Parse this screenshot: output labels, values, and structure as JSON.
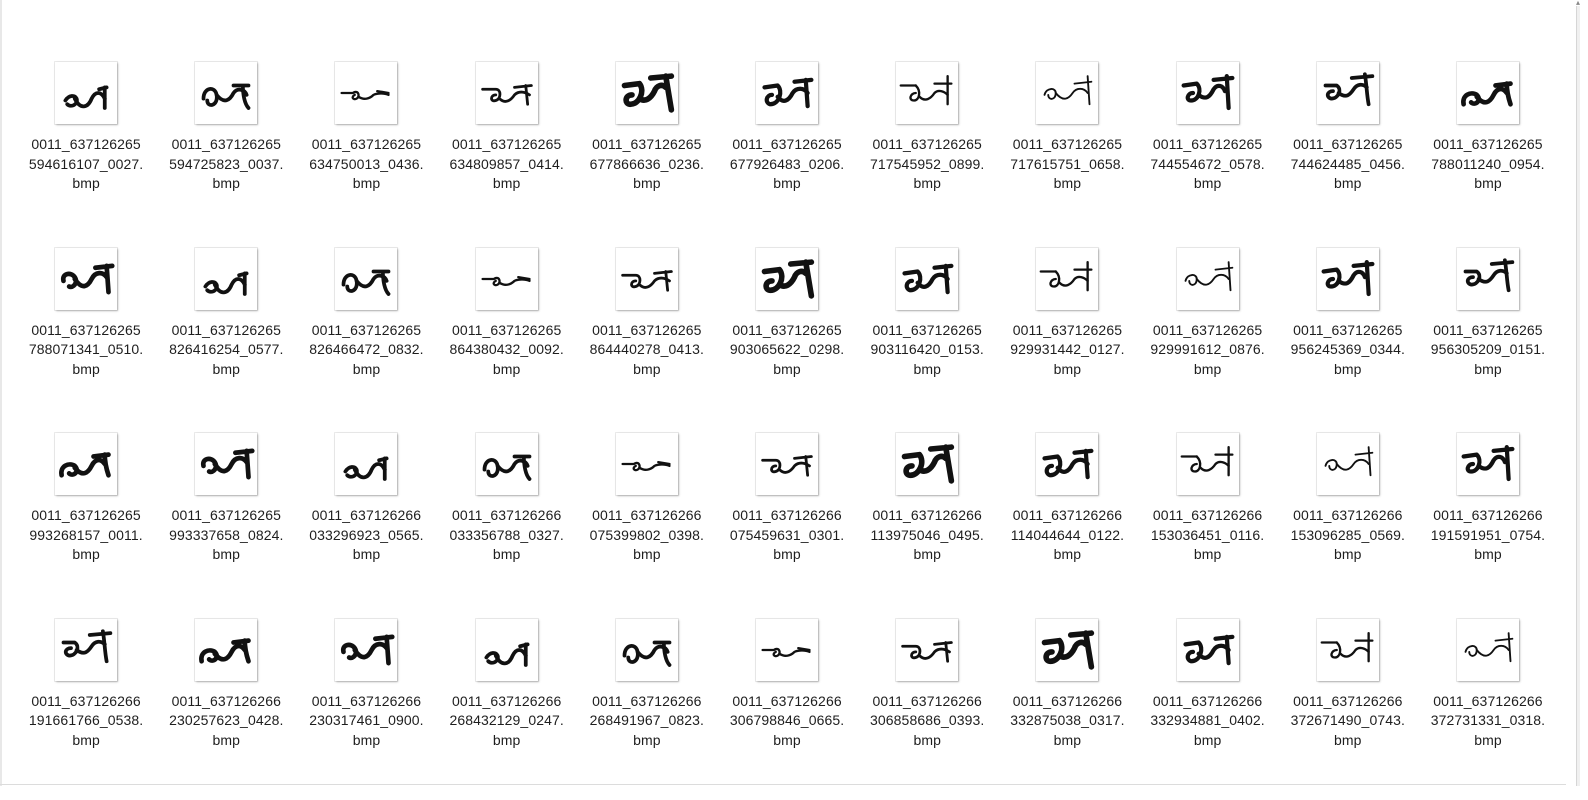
{
  "files": [
    {
      "name": [
        "0011_637126265",
        "594616107_0027.",
        "bmp"
      ],
      "glyph": 0
    },
    {
      "name": [
        "0011_637126265",
        "594725823_0037.",
        "bmp"
      ],
      "glyph": 1
    },
    {
      "name": [
        "0011_637126265",
        "634750013_0436.",
        "bmp"
      ],
      "glyph": 2
    },
    {
      "name": [
        "0011_637126265",
        "634809857_0414.",
        "bmp"
      ],
      "glyph": 3
    },
    {
      "name": [
        "0011_637126265",
        "677866636_0236.",
        "bmp"
      ],
      "glyph": 4
    },
    {
      "name": [
        "0011_637126265",
        "677926483_0206.",
        "bmp"
      ],
      "glyph": 5
    },
    {
      "name": [
        "0011_637126265",
        "717545952_0899.",
        "bmp"
      ],
      "glyph": 6
    },
    {
      "name": [
        "0011_637126265",
        "717615751_0658.",
        "bmp"
      ],
      "glyph": 7
    },
    {
      "name": [
        "0011_637126265",
        "744554672_0578.",
        "bmp"
      ],
      "glyph": 8
    },
    {
      "name": [
        "0011_637126265",
        "744624485_0456.",
        "bmp"
      ],
      "glyph": 9
    },
    {
      "name": [
        "0011_637126265",
        "788011240_0954.",
        "bmp"
      ],
      "glyph": 10
    },
    {
      "name": [
        "0011_637126265",
        "788071341_0510.",
        "bmp"
      ],
      "glyph": 11
    },
    {
      "name": [
        "0011_637126265",
        "826416254_0577.",
        "bmp"
      ],
      "glyph": 0
    },
    {
      "name": [
        "0011_637126265",
        "826466472_0832.",
        "bmp"
      ],
      "glyph": 1
    },
    {
      "name": [
        "0011_637126265",
        "864380432_0092.",
        "bmp"
      ],
      "glyph": 2
    },
    {
      "name": [
        "0011_637126265",
        "864440278_0413.",
        "bmp"
      ],
      "glyph": 3
    },
    {
      "name": [
        "0011_637126265",
        "903065622_0298.",
        "bmp"
      ],
      "glyph": 4
    },
    {
      "name": [
        "0011_637126265",
        "903116420_0153.",
        "bmp"
      ],
      "glyph": 5
    },
    {
      "name": [
        "0011_637126265",
        "929931442_0127.",
        "bmp"
      ],
      "glyph": 6
    },
    {
      "name": [
        "0011_637126265",
        "929991612_0876.",
        "bmp"
      ],
      "glyph": 7
    },
    {
      "name": [
        "0011_637126265",
        "956245369_0344.",
        "bmp"
      ],
      "glyph": 8
    },
    {
      "name": [
        "0011_637126265",
        "956305209_0151.",
        "bmp"
      ],
      "glyph": 9
    },
    {
      "name": [
        "0011_637126265",
        "993268157_0011.",
        "bmp"
      ],
      "glyph": 10
    },
    {
      "name": [
        "0011_637126265",
        "993337658_0824.",
        "bmp"
      ],
      "glyph": 11
    },
    {
      "name": [
        "0011_637126266",
        "033296923_0565.",
        "bmp"
      ],
      "glyph": 0
    },
    {
      "name": [
        "0011_637126266",
        "033356788_0327.",
        "bmp"
      ],
      "glyph": 1
    },
    {
      "name": [
        "0011_637126266",
        "075399802_0398.",
        "bmp"
      ],
      "glyph": 2
    },
    {
      "name": [
        "0011_637126266",
        "075459631_0301.",
        "bmp"
      ],
      "glyph": 3
    },
    {
      "name": [
        "0011_637126266",
        "113975046_0495.",
        "bmp"
      ],
      "glyph": 4
    },
    {
      "name": [
        "0011_637126266",
        "114044644_0122.",
        "bmp"
      ],
      "glyph": 5
    },
    {
      "name": [
        "0011_637126266",
        "153036451_0116.",
        "bmp"
      ],
      "glyph": 6
    },
    {
      "name": [
        "0011_637126266",
        "153096285_0569.",
        "bmp"
      ],
      "glyph": 7
    },
    {
      "name": [
        "0011_637126266",
        "191591951_0754.",
        "bmp"
      ],
      "glyph": 8
    },
    {
      "name": [
        "0011_637126266",
        "191661766_0538.",
        "bmp"
      ],
      "glyph": 9
    },
    {
      "name": [
        "0011_637126266",
        "230257623_0428.",
        "bmp"
      ],
      "glyph": 10
    },
    {
      "name": [
        "0011_637126266",
        "230317461_0900.",
        "bmp"
      ],
      "glyph": 11
    },
    {
      "name": [
        "0011_637126266",
        "268432129_0247.",
        "bmp"
      ],
      "glyph": 0
    },
    {
      "name": [
        "0011_637126266",
        "268491967_0823.",
        "bmp"
      ],
      "glyph": 1
    },
    {
      "name": [
        "0011_637126266",
        "306798846_0665.",
        "bmp"
      ],
      "glyph": 2
    },
    {
      "name": [
        "0011_637126266",
        "306858686_0393.",
        "bmp"
      ],
      "glyph": 3
    },
    {
      "name": [
        "0011_637126266",
        "332875038_0317.",
        "bmp"
      ],
      "glyph": 4
    },
    {
      "name": [
        "0011_637126266",
        "332934881_0402.",
        "bmp"
      ],
      "glyph": 5
    },
    {
      "name": [
        "0011_637126266",
        "372671490_0743.",
        "bmp"
      ],
      "glyph": 6
    },
    {
      "name": [
        "0011_637126266",
        "372731331_0318.",
        "bmp"
      ],
      "glyph": 7
    }
  ]
}
